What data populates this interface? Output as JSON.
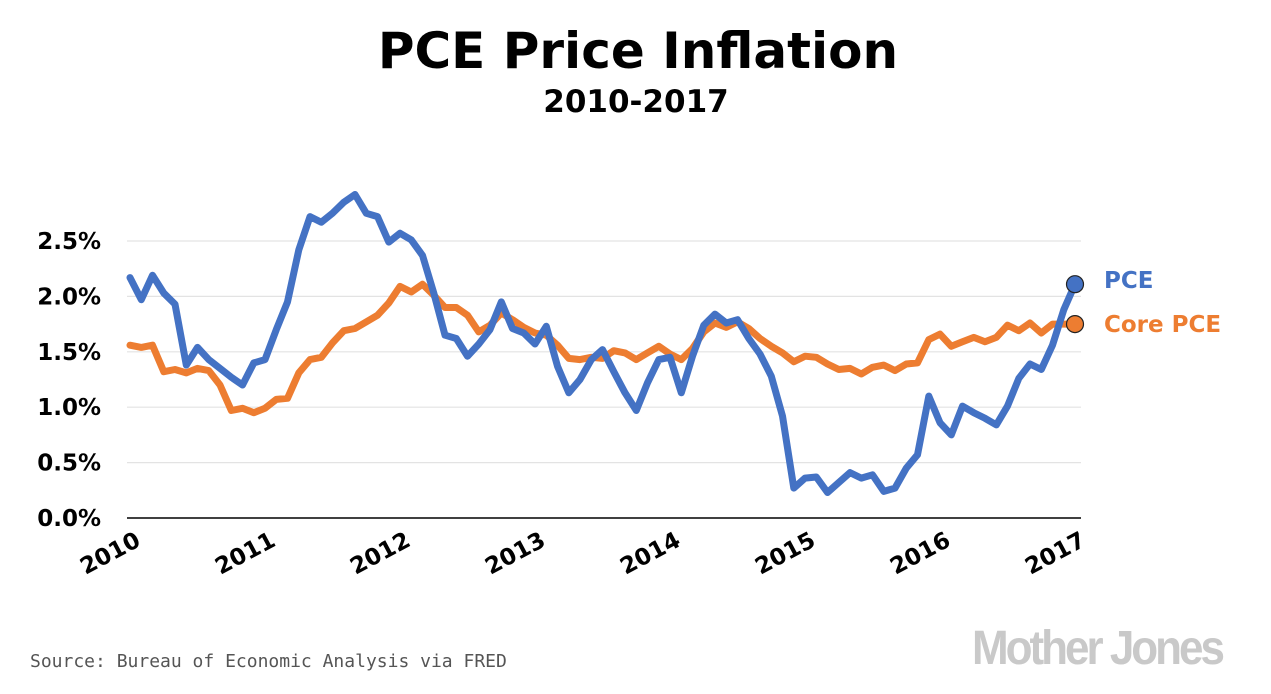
{
  "chart_data": {
    "type": "line",
    "title": "PCE Price Inflation",
    "subtitle": "2010-2017",
    "xlabel": "",
    "ylabel": "",
    "x_start": "2010-01",
    "x_frequency": "monthly",
    "x_tick_labels": [
      "2010",
      "2011",
      "2012",
      "2013",
      "2014",
      "2015",
      "2016",
      "2017"
    ],
    "y_tick_values": [
      0,
      0.5,
      1.0,
      1.5,
      2.0,
      2.5
    ],
    "y_tick_labels": [
      "0.0%",
      "0.5%",
      "1.0%",
      "1.5%",
      "2.0%",
      "2.5%"
    ],
    "ylim": [
      0,
      3.0
    ],
    "grid": "horizontal",
    "legend": "direct labels at line ends (right)",
    "series": [
      {
        "name": "PCE",
        "color": "#4472C4",
        "values": [
          2.17,
          1.97,
          2.19,
          2.03,
          1.93,
          1.38,
          1.54,
          1.43,
          1.35,
          1.27,
          1.2,
          1.4,
          1.43,
          1.7,
          1.95,
          2.42,
          2.72,
          2.67,
          2.75,
          2.85,
          2.92,
          2.75,
          2.72,
          2.49,
          2.57,
          2.51,
          2.37,
          2.03,
          1.65,
          1.62,
          1.46,
          1.57,
          1.7,
          1.95,
          1.71,
          1.67,
          1.57,
          1.73,
          1.37,
          1.13,
          1.25,
          1.43,
          1.52,
          1.32,
          1.13,
          0.97,
          1.22,
          1.43,
          1.45,
          1.13,
          1.46,
          1.74,
          1.84,
          1.76,
          1.79,
          1.62,
          1.48,
          1.28,
          0.92,
          0.27,
          0.36,
          0.37,
          0.23,
          0.32,
          0.41,
          0.36,
          0.39,
          0.24,
          0.27,
          0.45,
          0.57,
          1.1,
          0.86,
          0.75,
          1.01,
          0.95,
          0.9,
          0.84,
          1.01,
          1.26,
          1.39,
          1.34,
          1.56,
          1.88,
          2.11
        ]
      },
      {
        "name": "Core PCE",
        "color": "#ED7D31",
        "values": [
          1.56,
          1.54,
          1.56,
          1.32,
          1.34,
          1.31,
          1.35,
          1.33,
          1.2,
          0.97,
          0.99,
          0.95,
          0.99,
          1.07,
          1.08,
          1.31,
          1.43,
          1.45,
          1.58,
          1.69,
          1.71,
          1.77,
          1.83,
          1.94,
          2.09,
          2.04,
          2.11,
          2.01,
          1.9,
          1.9,
          1.83,
          1.68,
          1.74,
          1.85,
          1.79,
          1.72,
          1.67,
          1.65,
          1.56,
          1.44,
          1.43,
          1.45,
          1.44,
          1.51,
          1.49,
          1.43,
          1.49,
          1.55,
          1.48,
          1.43,
          1.53,
          1.68,
          1.76,
          1.72,
          1.77,
          1.71,
          1.62,
          1.55,
          1.49,
          1.41,
          1.46,
          1.45,
          1.39,
          1.34,
          1.35,
          1.3,
          1.36,
          1.38,
          1.33,
          1.39,
          1.4,
          1.61,
          1.66,
          1.55,
          1.59,
          1.63,
          1.59,
          1.63,
          1.74,
          1.69,
          1.76,
          1.67,
          1.75,
          1.75,
          1.75
        ]
      }
    ]
  },
  "source": "Source: Bureau of Economic Analysis via FRED",
  "logo": "Mother Jones"
}
